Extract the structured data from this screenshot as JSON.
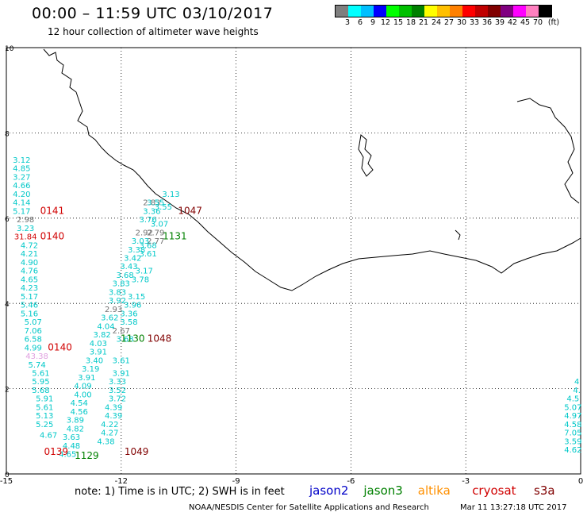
{
  "title": "00:00 – 11:59 UTC 03/10/2017",
  "subtitle": "12 hour collection of altimeter wave heights",
  "colorbar": {
    "unit": "(ft)",
    "labels": [
      "3",
      "6",
      "9",
      "12",
      "15",
      "18",
      "21",
      "24",
      "27",
      "30",
      "33",
      "36",
      "39",
      "42",
      "45",
      "70"
    ],
    "colors": [
      "#7f7f7f",
      "#00ffff",
      "#00bfff",
      "#0000ff",
      "#00ff00",
      "#00c000",
      "#008000",
      "#ffff00",
      "#ffc000",
      "#ff8000",
      "#ff0000",
      "#c00000",
      "#800000",
      "#800080",
      "#ff00ff",
      "#ff80c0",
      "#000000"
    ]
  },
  "map": {
    "x_ticks": [
      "-15",
      "-12",
      "-9",
      "-6",
      "-3",
      "0"
    ],
    "y_ticks": [
      "10",
      "8",
      "6",
      "4",
      "2",
      "0"
    ],
    "x_range": [
      -15,
      0
    ],
    "y_range": [
      0,
      10
    ],
    "tracks": [
      {
        "satellite": "jason2",
        "time_label": "0141",
        "time_color": "#d00000",
        "readings": [
          {
            "lon": -14.6,
            "lat": 7.3,
            "v": "3.12",
            "c": "#00c8c8"
          },
          {
            "lon": -14.6,
            "lat": 7.1,
            "v": "4.85",
            "c": "#00c8c8"
          },
          {
            "lon": -14.6,
            "lat": 6.9,
            "v": "3.27",
            "c": "#00c8c8"
          },
          {
            "lon": -14.6,
            "lat": 6.7,
            "v": "4.66",
            "c": "#00c8c8"
          },
          {
            "lon": -14.6,
            "lat": 6.5,
            "v": "4.20",
            "c": "#00c8c8"
          },
          {
            "lon": -14.6,
            "lat": 6.3,
            "v": "4.14",
            "c": "#00c8c8"
          },
          {
            "lon": -14.6,
            "lat": 6.1,
            "v": "5.17",
            "c": "#00c8c8"
          }
        ]
      },
      {
        "satellite": "cryosat",
        "time_label": "0140",
        "time_color": "#d00000",
        "readings": [
          {
            "lon": -14.5,
            "lat": 5.9,
            "v": "2.98",
            "c": "#707070"
          },
          {
            "lon": -14.5,
            "lat": 5.7,
            "v": "3.23",
            "c": "#00c8c8"
          },
          {
            "lon": -14.5,
            "lat": 5.5,
            "v": "31.84",
            "c": "#d00000"
          },
          {
            "lon": -14.4,
            "lat": 5.3,
            "v": "4.72",
            "c": "#00c8c8"
          },
          {
            "lon": -14.4,
            "lat": 5.1,
            "v": "4.21",
            "c": "#00c8c8"
          },
          {
            "lon": -14.4,
            "lat": 4.9,
            "v": "4.90",
            "c": "#00c8c8"
          },
          {
            "lon": -14.4,
            "lat": 4.7,
            "v": "4.76",
            "c": "#00c8c8"
          },
          {
            "lon": -14.4,
            "lat": 4.5,
            "v": "4.65",
            "c": "#00c8c8"
          },
          {
            "lon": -14.4,
            "lat": 4.3,
            "v": "4.23",
            "c": "#00c8c8"
          },
          {
            "lon": -14.4,
            "lat": 4.1,
            "v": "5.17",
            "c": "#00c8c8"
          },
          {
            "lon": -14.4,
            "lat": 3.9,
            "v": "5.46",
            "c": "#00c8c8"
          },
          {
            "lon": -14.4,
            "lat": 3.7,
            "v": "5.16",
            "c": "#00c8c8"
          },
          {
            "lon": -14.3,
            "lat": 3.5,
            "v": "5.07",
            "c": "#00c8c8"
          },
          {
            "lon": -14.3,
            "lat": 3.3,
            "v": "7.06",
            "c": "#00c8c8"
          },
          {
            "lon": -14.3,
            "lat": 3.1,
            "v": "6.58",
            "c": "#00c8c8"
          },
          {
            "lon": -14.3,
            "lat": 2.9,
            "v": "4.99",
            "c": "#00c8c8"
          }
        ]
      },
      {
        "satellite": "cryosat",
        "time_label": "0140",
        "time_color": "#d00000",
        "readings": [
          {
            "lon": -14.2,
            "lat": 2.7,
            "v": "43.38",
            "c": "#e0a0e0"
          },
          {
            "lon": -14.2,
            "lat": 2.5,
            "v": "5.74",
            "c": "#00c8c8"
          },
          {
            "lon": -14.1,
            "lat": 2.3,
            "v": "5.61",
            "c": "#00c8c8"
          },
          {
            "lon": -14.1,
            "lat": 2.1,
            "v": "5.95",
            "c": "#00c8c8"
          },
          {
            "lon": -14.1,
            "lat": 1.9,
            "v": "5.68",
            "c": "#00c8c8"
          },
          {
            "lon": -14.0,
            "lat": 1.7,
            "v": "5.91",
            "c": "#00c8c8"
          },
          {
            "lon": -14.0,
            "lat": 1.5,
            "v": "5.61",
            "c": "#00c8c8"
          },
          {
            "lon": -14.0,
            "lat": 1.3,
            "v": "5.13",
            "c": "#00c8c8"
          },
          {
            "lon": -14.0,
            "lat": 1.1,
            "v": "5.25",
            "c": "#00c8c8"
          },
          {
            "lon": -13.9,
            "lat": 0.85,
            "v": "4.67",
            "c": "#00c8c8"
          }
        ]
      },
      {
        "satellite": "jason3",
        "time_label": "1131",
        "time_color": "#007000",
        "readings": [
          {
            "lon": -10.7,
            "lat": 6.5,
            "v": "3.13",
            "c": "#00c8c8"
          },
          {
            "lon": -10.9,
            "lat": 6.2,
            "v": "3.55",
            "c": "#00c8c8"
          },
          {
            "lon": -11.0,
            "lat": 5.8,
            "v": "3.07",
            "c": "#00c8c8"
          },
          {
            "lon": -11.1,
            "lat": 5.6,
            "v": "2.79",
            "c": "#707070"
          },
          {
            "lon": -11.3,
            "lat": 5.3,
            "v": "3.68",
            "c": "#00c8c8"
          },
          {
            "lon": -11.3,
            "lat": 5.1,
            "v": "3.61",
            "c": "#00c8c8"
          },
          {
            "lon": -11.4,
            "lat": 4.7,
            "v": "3.17",
            "c": "#00c8c8"
          },
          {
            "lon": -11.5,
            "lat": 4.5,
            "v": "3.78",
            "c": "#00c8c8"
          },
          {
            "lon": -11.6,
            "lat": 4.1,
            "v": "3.15",
            "c": "#00c8c8"
          },
          {
            "lon": -11.7,
            "lat": 3.9,
            "v": "3.96",
            "c": "#00c8c8"
          },
          {
            "lon": -11.8,
            "lat": 3.7,
            "v": "3.36",
            "c": "#00c8c8"
          },
          {
            "lon": -11.8,
            "lat": 3.5,
            "v": "3.58",
            "c": "#00c8c8"
          }
        ]
      },
      {
        "satellite": "jason3",
        "time_label": "1130",
        "time_color": "#007000",
        "readings": [
          {
            "lon": -11.9,
            "lat": 3.1,
            "v": "3.68",
            "c": "#00c8c8"
          },
          {
            "lon": -12.0,
            "lat": 2.6,
            "v": "3.61",
            "c": "#00c8c8"
          },
          {
            "lon": -12.0,
            "lat": 2.3,
            "v": "3.91",
            "c": "#00c8c8"
          },
          {
            "lon": -12.1,
            "lat": 2.1,
            "v": "3.33",
            "c": "#00c8c8"
          },
          {
            "lon": -12.1,
            "lat": 1.9,
            "v": "3.52",
            "c": "#00c8c8"
          },
          {
            "lon": -12.1,
            "lat": 1.7,
            "v": "3.72",
            "c": "#00c8c8"
          },
          {
            "lon": -12.2,
            "lat": 1.5,
            "v": "4.39",
            "c": "#00c8c8"
          },
          {
            "lon": -12.2,
            "lat": 1.3,
            "v": "4.39",
            "c": "#00c8c8"
          },
          {
            "lon": -12.3,
            "lat": 1.1,
            "v": "4.22",
            "c": "#00c8c8"
          },
          {
            "lon": -12.3,
            "lat": 0.9,
            "v": "4.27",
            "c": "#00c8c8"
          },
          {
            "lon": -12.4,
            "lat": 0.7,
            "v": "4.38",
            "c": "#00c8c8"
          }
        ]
      },
      {
        "satellite": "cryosat",
        "time_label": "1048",
        "time_color": "#800000",
        "readings": [
          {
            "lon": -11.2,
            "lat": 6.3,
            "v": "2.83",
            "c": "#707070"
          },
          {
            "lon": -11.1,
            "lat": 5.4,
            "v": "2.77",
            "c": "#707070"
          },
          {
            "lon": -12.0,
            "lat": 3.3,
            "v": "2.67",
            "c": "#707070"
          }
        ]
      },
      {
        "satellite": "altika",
        "time_label": "1047",
        "time_color": "#800000",
        "readings": [
          {
            "lon": -11.1,
            "lat": 6.3,
            "v": "3.55",
            "c": "#00c8c8"
          },
          {
            "lon": -11.2,
            "lat": 6.1,
            "v": "3.36",
            "c": "#00c8c8"
          },
          {
            "lon": -11.3,
            "lat": 5.9,
            "v": "3.76",
            "c": "#00c8c8"
          },
          {
            "lon": -11.4,
            "lat": 5.6,
            "v": "2.92",
            "c": "#707070"
          },
          {
            "lon": -11.5,
            "lat": 5.4,
            "v": "3.03",
            "c": "#00c8c8"
          },
          {
            "lon": -11.6,
            "lat": 5.2,
            "v": "3.38",
            "c": "#00c8c8"
          },
          {
            "lon": -11.7,
            "lat": 5.0,
            "v": "3.42",
            "c": "#00c8c8"
          },
          {
            "lon": -11.8,
            "lat": 4.8,
            "v": "3.43",
            "c": "#00c8c8"
          },
          {
            "lon": -11.9,
            "lat": 4.6,
            "v": "3.68",
            "c": "#00c8c8"
          },
          {
            "lon": -12.0,
            "lat": 4.4,
            "v": "3.83",
            "c": "#00c8c8"
          },
          {
            "lon": -12.1,
            "lat": 4.2,
            "v": "3.83",
            "c": "#00c8c8"
          },
          {
            "lon": -12.1,
            "lat": 4.0,
            "v": "3.92",
            "c": "#00c8c8"
          },
          {
            "lon": -12.2,
            "lat": 3.8,
            "v": "2.93",
            "c": "#707070"
          },
          {
            "lon": -12.3,
            "lat": 3.6,
            "v": "3.62",
            "c": "#00c8c8"
          },
          {
            "lon": -12.4,
            "lat": 3.4,
            "v": "4.04",
            "c": "#00c8c8"
          },
          {
            "lon": -12.5,
            "lat": 3.2,
            "v": "3.82",
            "c": "#00c8c8"
          },
          {
            "lon": -12.6,
            "lat": 3.0,
            "v": "4.03",
            "c": "#00c8c8"
          },
          {
            "lon": -12.6,
            "lat": 2.8,
            "v": "3.91",
            "c": "#00c8c8"
          },
          {
            "lon": -12.7,
            "lat": 2.6,
            "v": "3.40",
            "c": "#00c8c8"
          },
          {
            "lon": -12.8,
            "lat": 2.4,
            "v": "3.19",
            "c": "#00c8c8"
          },
          {
            "lon": -12.9,
            "lat": 2.2,
            "v": "3.91",
            "c": "#00c8c8"
          },
          {
            "lon": -13.0,
            "lat": 2.0,
            "v": "4.09",
            "c": "#00c8c8"
          },
          {
            "lon": -13.0,
            "lat": 1.8,
            "v": "4.00",
            "c": "#00c8c8"
          },
          {
            "lon": -13.1,
            "lat": 1.6,
            "v": "4.54",
            "c": "#00c8c8"
          },
          {
            "lon": -13.1,
            "lat": 1.4,
            "v": "4.56",
            "c": "#00c8c8"
          },
          {
            "lon": -13.2,
            "lat": 1.2,
            "v": "3.89",
            "c": "#00c8c8"
          },
          {
            "lon": -13.2,
            "lat": 1.0,
            "v": "4.82",
            "c": "#00c8c8"
          },
          {
            "lon": -13.3,
            "lat": 0.8,
            "v": "3.63",
            "c": "#00c8c8"
          },
          {
            "lon": -13.3,
            "lat": 0.6,
            "v": "4.48",
            "c": "#00c8c8"
          },
          {
            "lon": -13.4,
            "lat": 0.4,
            "v": "4.65",
            "c": "#00c8c8"
          }
        ]
      },
      {
        "satellite": "right-edge",
        "time_label": "",
        "time_color": "#000000",
        "readings": [
          {
            "lon": -0.1,
            "lat": 2.1,
            "v": "4",
            "c": "#00c8c8"
          },
          {
            "lon": -0.1,
            "lat": 1.9,
            "v": "4.",
            "c": "#00c8c8"
          },
          {
            "lon": -0.2,
            "lat": 1.7,
            "v": "4.5",
            "c": "#00c8c8"
          },
          {
            "lon": -0.2,
            "lat": 1.5,
            "v": "5.07",
            "c": "#00c8c8"
          },
          {
            "lon": -0.2,
            "lat": 1.3,
            "v": "4.97",
            "c": "#00c8c8"
          },
          {
            "lon": -0.2,
            "lat": 1.1,
            "v": "4.58",
            "c": "#00c8c8"
          },
          {
            "lon": -0.2,
            "lat": 0.9,
            "v": "7.05",
            "c": "#00c8c8"
          },
          {
            "lon": -0.2,
            "lat": 0.7,
            "v": "3.59",
            "c": "#00c8c8"
          },
          {
            "lon": -0.2,
            "lat": 0.5,
            "v": "4.62",
            "c": "#00c8c8"
          }
        ]
      }
    ],
    "time_tags": [
      {
        "text": "0141",
        "lon": -13.8,
        "lat": 6.1,
        "c": "#d00000"
      },
      {
        "text": "0140",
        "lon": -13.8,
        "lat": 5.5,
        "c": "#d00000"
      },
      {
        "text": "0140",
        "lon": -13.6,
        "lat": 2.9,
        "c": "#d00000"
      },
      {
        "text": "1047",
        "lon": -10.2,
        "lat": 6.1,
        "c": "#800000"
      },
      {
        "text": "1131",
        "lon": -10.6,
        "lat": 5.5,
        "c": "#008000"
      },
      {
        "text": "1130",
        "lon": -11.7,
        "lat": 3.1,
        "c": "#008000"
      },
      {
        "text": "1048",
        "lon": -11.0,
        "lat": 3.1,
        "c": "#800000"
      },
      {
        "text": "0139",
        "lon": -13.7,
        "lat": 0.45,
        "c": "#d00000"
      },
      {
        "text": "1129",
        "lon": -12.9,
        "lat": 0.35,
        "c": "#008000"
      },
      {
        "text": "1049",
        "lon": -11.6,
        "lat": 0.45,
        "c": "#800000"
      }
    ]
  },
  "footer": {
    "note": "note: 1) Time is in UTC; 2) SWH is in feet",
    "credit": "NOAA/NESDIS Center for Satellite Applications and Research",
    "generated": "Mar 11 13:27:18 UTC 2017"
  },
  "legend": [
    {
      "name": "jason2",
      "color": "#0000c8"
    },
    {
      "name": "jason3",
      "color": "#008000"
    },
    {
      "name": "altika",
      "color": "#ff9000"
    },
    {
      "name": "cryosat",
      "color": "#d00000"
    },
    {
      "name": "s3a",
      "color": "#800000"
    }
  ]
}
